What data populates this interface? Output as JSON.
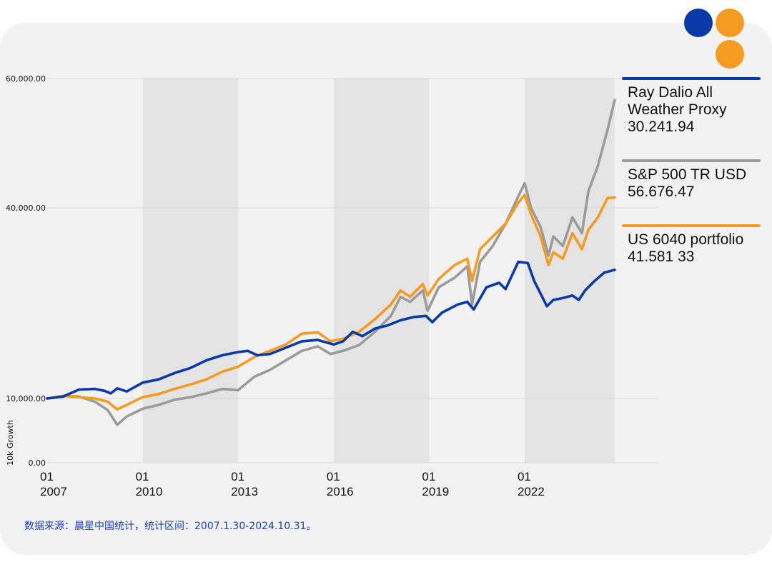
{
  "colors": {
    "background": "#f2f2f2",
    "band": "#e4e4e4",
    "grid": "#d9d9d9",
    "text": "#111111",
    "source": "#1c3fad",
    "logo_blue": "#0a3aa8",
    "logo_orange": "#f59b1f"
  },
  "chart_data": {
    "type": "line",
    "ylabel": "10k Growth",
    "yticks": [
      {
        "value": 0,
        "label": "0.00"
      },
      {
        "value": 10000,
        "label": "10,000.00"
      },
      {
        "value": 40000,
        "label": "40,000.00"
      },
      {
        "value": 60000,
        "label": "60,000.00"
      }
    ],
    "ylim": [
      0,
      60000
    ],
    "xlim": [
      2007.0,
      2024.83
    ],
    "xticks": [
      {
        "value": 2007,
        "month": "01",
        "year": "2007"
      },
      {
        "value": 2010,
        "month": "01",
        "year": "2010"
      },
      {
        "value": 2013,
        "month": "01",
        "year": "2013"
      },
      {
        "value": 2016,
        "month": "01",
        "year": "2016"
      },
      {
        "value": 2019,
        "month": "01",
        "year": "2019"
      },
      {
        "value": 2022,
        "month": "01",
        "year": "2022"
      }
    ],
    "shaded_bands": [
      [
        2010,
        2013
      ],
      [
        2016,
        2019
      ],
      [
        2022,
        2024.83
      ]
    ],
    "series": [
      {
        "name": "Ray Dalio All Weather Proxy",
        "legend_lines": [
          "Ray Dalio All",
          "Weather Proxy",
          "30.241.94"
        ],
        "color": "#0a3aa8",
        "points": [
          [
            2007.0,
            10000
          ],
          [
            2007.5,
            10300
          ],
          [
            2008.0,
            11400
          ],
          [
            2008.5,
            11500
          ],
          [
            2008.8,
            11200
          ],
          [
            2009.0,
            10800
          ],
          [
            2009.2,
            11600
          ],
          [
            2009.5,
            11100
          ],
          [
            2010.0,
            12500
          ],
          [
            2010.5,
            13000
          ],
          [
            2011.0,
            14000
          ],
          [
            2011.5,
            14800
          ],
          [
            2012.0,
            16000
          ],
          [
            2012.5,
            16800
          ],
          [
            2013.0,
            17300
          ],
          [
            2013.3,
            17500
          ],
          [
            2013.6,
            16800
          ],
          [
            2014.0,
            17000
          ],
          [
            2014.5,
            18000
          ],
          [
            2015.0,
            19000
          ],
          [
            2015.5,
            19200
          ],
          [
            2016.0,
            18500
          ],
          [
            2016.3,
            19000
          ],
          [
            2016.6,
            20500
          ],
          [
            2016.9,
            19800
          ],
          [
            2017.3,
            21000
          ],
          [
            2017.7,
            21500
          ],
          [
            2018.1,
            22300
          ],
          [
            2018.5,
            22800
          ],
          [
            2018.9,
            23000
          ],
          [
            2019.1,
            22000
          ],
          [
            2019.4,
            23500
          ],
          [
            2019.9,
            24800
          ],
          [
            2020.2,
            25200
          ],
          [
            2020.4,
            24000
          ],
          [
            2020.8,
            27500
          ],
          [
            2021.2,
            28200
          ],
          [
            2021.4,
            27200
          ],
          [
            2021.8,
            31500
          ],
          [
            2022.1,
            31300
          ],
          [
            2022.3,
            28500
          ],
          [
            2022.5,
            26500
          ],
          [
            2022.7,
            24500
          ],
          [
            2022.9,
            25500
          ],
          [
            2023.2,
            25800
          ],
          [
            2023.5,
            26200
          ],
          [
            2023.7,
            25500
          ],
          [
            2023.9,
            27000
          ],
          [
            2024.2,
            28500
          ],
          [
            2024.5,
            29800
          ],
          [
            2024.83,
            30242
          ]
        ]
      },
      {
        "name": "S&P 500 TR USD",
        "legend_lines": [
          "S&P 500 TR USD",
          "56.676.47"
        ],
        "color": "#9b9b9b",
        "points": [
          [
            2007.0,
            10000
          ],
          [
            2007.5,
            10400
          ],
          [
            2008.0,
            10300
          ],
          [
            2008.5,
            9500
          ],
          [
            2008.9,
            8200
          ],
          [
            2009.2,
            5900
          ],
          [
            2009.5,
            7200
          ],
          [
            2010.0,
            8400
          ],
          [
            2010.5,
            9000
          ],
          [
            2011.0,
            9800
          ],
          [
            2011.5,
            10200
          ],
          [
            2012.0,
            10800
          ],
          [
            2012.5,
            11500
          ],
          [
            2013.0,
            11300
          ],
          [
            2013.5,
            13400
          ],
          [
            2014.0,
            14500
          ],
          [
            2014.5,
            16000
          ],
          [
            2015.0,
            17500
          ],
          [
            2015.5,
            18200
          ],
          [
            2015.9,
            17000
          ],
          [
            2016.3,
            17500
          ],
          [
            2016.8,
            18400
          ],
          [
            2017.3,
            20500
          ],
          [
            2017.8,
            23000
          ],
          [
            2018.1,
            26000
          ],
          [
            2018.4,
            25200
          ],
          [
            2018.8,
            27000
          ],
          [
            2018.95,
            23800
          ],
          [
            2019.3,
            27500
          ],
          [
            2019.8,
            29000
          ],
          [
            2020.2,
            30800
          ],
          [
            2020.35,
            24800
          ],
          [
            2020.6,
            31500
          ],
          [
            2021.0,
            34000
          ],
          [
            2021.4,
            37500
          ],
          [
            2021.8,
            41800
          ],
          [
            2022.0,
            43800
          ],
          [
            2022.2,
            40000
          ],
          [
            2022.5,
            37000
          ],
          [
            2022.75,
            32500
          ],
          [
            2022.9,
            35500
          ],
          [
            2023.2,
            34000
          ],
          [
            2023.5,
            38500
          ],
          [
            2023.8,
            36000
          ],
          [
            2024.0,
            42500
          ],
          [
            2024.3,
            46500
          ],
          [
            2024.6,
            52000
          ],
          [
            2024.83,
            56676
          ]
        ]
      },
      {
        "name": "US 6040 portfolio",
        "legend_lines": [
          "US 6040 portfolio",
          "41.581 33"
        ],
        "color": "#f59b1f",
        "points": [
          [
            2007.0,
            10000
          ],
          [
            2007.5,
            10400
          ],
          [
            2008.0,
            10200
          ],
          [
            2008.5,
            10000
          ],
          [
            2008.9,
            9500
          ],
          [
            2009.2,
            8300
          ],
          [
            2009.5,
            9000
          ],
          [
            2010.0,
            10200
          ],
          [
            2010.5,
            10700
          ],
          [
            2011.0,
            11500
          ],
          [
            2011.5,
            12200
          ],
          [
            2012.0,
            13000
          ],
          [
            2012.5,
            14200
          ],
          [
            2013.0,
            15000
          ],
          [
            2013.5,
            16500
          ],
          [
            2014.0,
            17500
          ],
          [
            2014.5,
            18500
          ],
          [
            2015.0,
            20200
          ],
          [
            2015.5,
            20400
          ],
          [
            2015.9,
            19000
          ],
          [
            2016.3,
            19400
          ],
          [
            2016.8,
            20500
          ],
          [
            2017.3,
            22500
          ],
          [
            2017.8,
            24800
          ],
          [
            2018.1,
            27000
          ],
          [
            2018.4,
            26000
          ],
          [
            2018.8,
            28000
          ],
          [
            2018.95,
            26200
          ],
          [
            2019.3,
            28800
          ],
          [
            2019.8,
            31000
          ],
          [
            2020.2,
            32000
          ],
          [
            2020.35,
            28500
          ],
          [
            2020.6,
            33500
          ],
          [
            2021.0,
            35500
          ],
          [
            2021.4,
            37500
          ],
          [
            2021.8,
            40800
          ],
          [
            2022.0,
            42000
          ],
          [
            2022.2,
            39000
          ],
          [
            2022.5,
            35500
          ],
          [
            2022.75,
            31000
          ],
          [
            2022.9,
            33000
          ],
          [
            2023.2,
            32000
          ],
          [
            2023.5,
            36000
          ],
          [
            2023.8,
            33500
          ],
          [
            2024.0,
            36500
          ],
          [
            2024.3,
            38500
          ],
          [
            2024.6,
            41500
          ],
          [
            2024.83,
            41581
          ]
        ]
      }
    ]
  },
  "source_note": "数据来源：晨星中国统计，统计区间：2007.1.30-2024.10.31。"
}
